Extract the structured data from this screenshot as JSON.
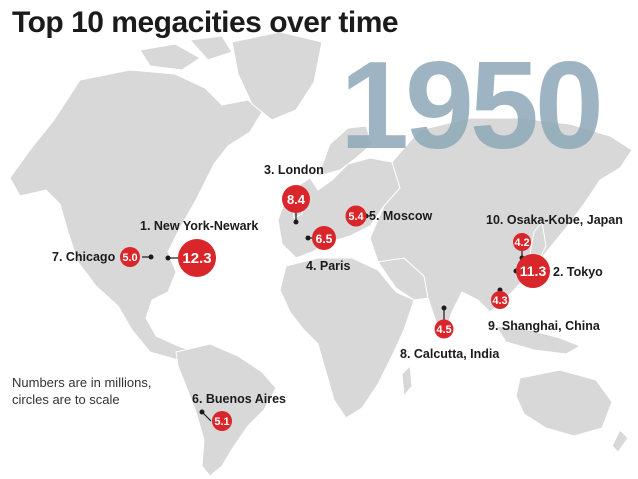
{
  "title": "Top 10 megacities over time",
  "year": "1950",
  "note_line1": "Numbers are in millions,",
  "note_line2": "circles are to scale",
  "colors": {
    "land": "#d8d8d8",
    "circle": "#d8262b",
    "year": "#8ea8b8"
  },
  "cities": [
    {
      "rank": 1,
      "label": "1. New York-Newark",
      "value": "12.3"
    },
    {
      "rank": 2,
      "label": "2. Tokyo",
      "value": "11.3"
    },
    {
      "rank": 3,
      "label": "3. London",
      "value": "8.4"
    },
    {
      "rank": 4,
      "label": "4. Paris",
      "value": "6.5"
    },
    {
      "rank": 5,
      "label": "5. Moscow",
      "value": "5.4"
    },
    {
      "rank": 6,
      "label": "6. Buenos Aires",
      "value": "5.1"
    },
    {
      "rank": 7,
      "label": "7. Chicago",
      "value": "5.0"
    },
    {
      "rank": 8,
      "label": "8. Calcutta, India",
      "value": "4.5"
    },
    {
      "rank": 9,
      "label": "9. Shanghai, China",
      "value": "4.3"
    },
    {
      "rank": 10,
      "label": "10. Osaka-Kobe, Japan",
      "value": "4.2"
    }
  ]
}
